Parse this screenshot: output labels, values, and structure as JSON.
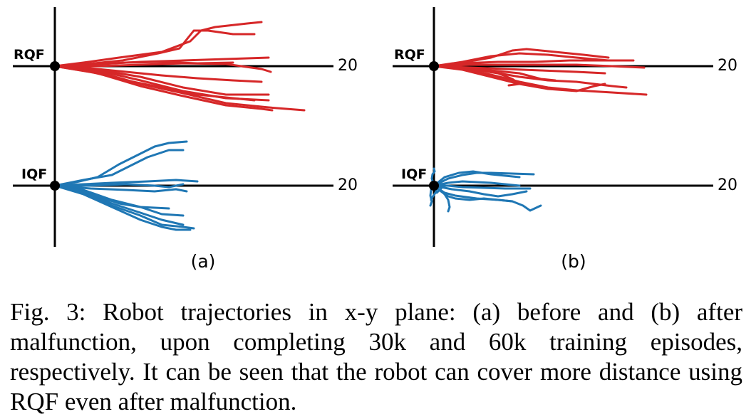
{
  "figure": {
    "panels": [
      {
        "id": "a",
        "label": "(a)",
        "rows": [
          {
            "name": "RQF",
            "tick": "20",
            "color": "#d62728"
          },
          {
            "name": "IQF",
            "tick": "20",
            "color": "#1f77b4"
          }
        ]
      },
      {
        "id": "b",
        "label": "(b)",
        "rows": [
          {
            "name": "RQF",
            "tick": "20",
            "color": "#d62728"
          },
          {
            "name": "IQF",
            "tick": "20",
            "color": "#1f77b4"
          }
        ]
      }
    ]
  },
  "caption": {
    "prefix": "Fig. 3:",
    "text": "Robot trajectories in x-y plane: (a) before and (b) after malfunction, upon completing 30k and 60k training episodes, respectively. It can be seen that the robot can cover more distance using RQF even after malfunction."
  }
}
